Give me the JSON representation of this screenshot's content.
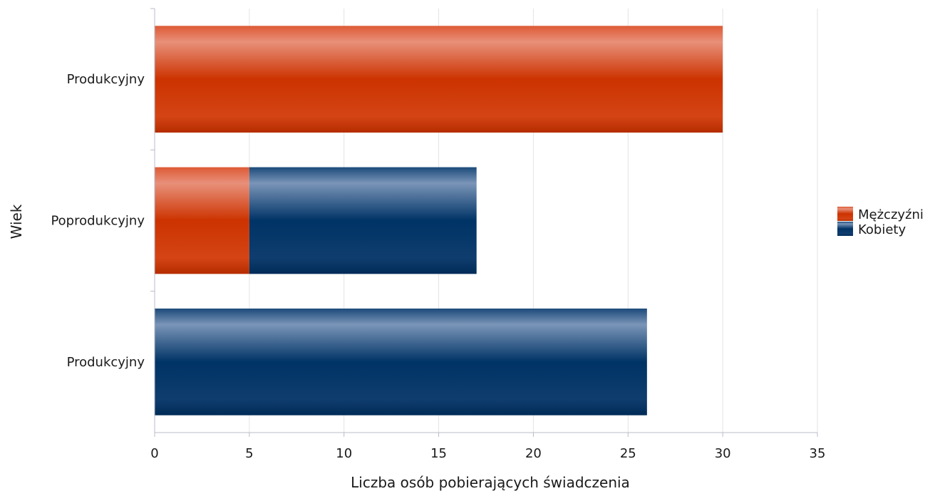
{
  "chart_data": {
    "type": "bar",
    "orientation": "horizontal",
    "stacked": true,
    "categories": [
      "Produkcyjny",
      "Poprodukcyjny",
      "Produkcyjny"
    ],
    "series": [
      {
        "name": "Mężczyźni",
        "values": [
          30,
          5,
          0
        ],
        "color": "#d03000"
      },
      {
        "name": "Kobiety",
        "values": [
          0,
          12,
          26
        ],
        "color": "#0a3766"
      }
    ],
    "xlabel": "Liczba osób pobierających świadczenia",
    "ylabel": "Wiek",
    "xlim": [
      0,
      35
    ],
    "xticks": [
      0,
      5,
      10,
      15,
      20,
      25,
      30,
      35
    ],
    "grid": true,
    "legend": "right"
  }
}
